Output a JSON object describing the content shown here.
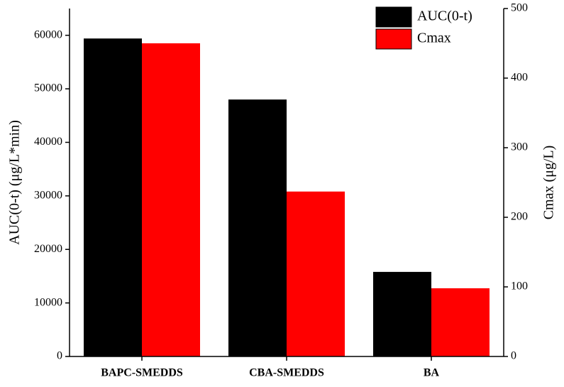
{
  "chart_data": {
    "type": "bar",
    "categories": [
      "BAPC-SMEDDS",
      "CBA-SMEDDS",
      "BA"
    ],
    "series": [
      {
        "name": "AUC(0-t)",
        "color": "#000000",
        "values": [
          59400,
          48000,
          15800
        ]
      },
      {
        "name": "Cmax",
        "color": "#ff0000",
        "values": [
          450,
          237,
          98
        ],
        "axis": "y2"
      }
    ],
    "ylabel": "AUC(0-t) (μg/L*min)",
    "y2label": "Cmax (μg/L)",
    "ylim": [
      0,
      65000
    ],
    "yticks": [
      0,
      10000,
      20000,
      30000,
      40000,
      50000,
      60000
    ],
    "y2lim": [
      0,
      500
    ],
    "y2ticks": [
      0,
      100,
      200,
      300,
      400,
      500
    ],
    "legend": "upper right"
  }
}
